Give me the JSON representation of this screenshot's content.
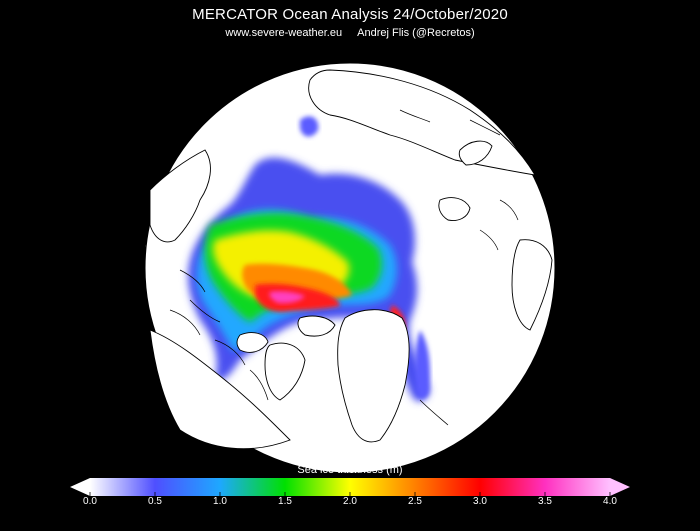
{
  "header": {
    "title": "MERCATOR Ocean Analysis  24/October/2020",
    "website": "www.severe-weather.eu",
    "author": "Andrej Flis (@Recretos)"
  },
  "colorbar": {
    "label": "Sea ice thickness (m)",
    "min": 0.0,
    "max": 4.0,
    "ticks": [
      "0.0",
      "0.5",
      "1.0",
      "1.5",
      "2.0",
      "2.5",
      "3.0",
      "3.5",
      "4.0"
    ],
    "stops": [
      {
        "value": 0.0,
        "color": "#ffffff"
      },
      {
        "value": 0.5,
        "color": "#4f4fff"
      },
      {
        "value": 1.0,
        "color": "#1ea8ff"
      },
      {
        "value": 1.5,
        "color": "#00e000"
      },
      {
        "value": 2.0,
        "color": "#ffff00"
      },
      {
        "value": 2.5,
        "color": "#ff8000"
      },
      {
        "value": 3.0,
        "color": "#ff0000"
      },
      {
        "value": 3.5,
        "color": "#ff30c0"
      },
      {
        "value": 4.0,
        "color": "#ffc0ff"
      }
    ]
  },
  "colors": {
    "background": "#000000",
    "map_disc": "#ffffff",
    "coastline": "#000000"
  }
}
